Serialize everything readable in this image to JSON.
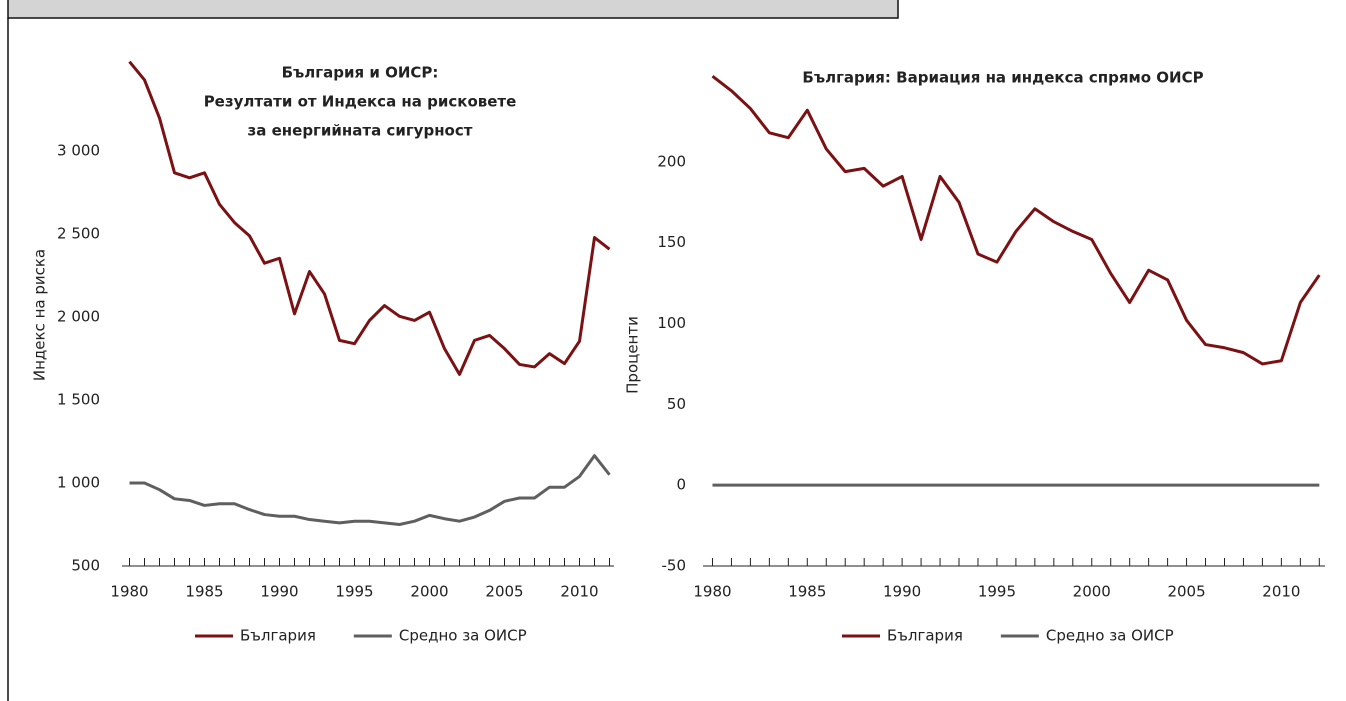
{
  "chart_data": [
    {
      "type": "line",
      "title": [
        "България и ОИСР:",
        "Резултати от Индекса на рисковете",
        "за енергийната сигурност"
      ],
      "y_label": "Индекс на риска",
      "x": [
        1980,
        1981,
        1982,
        1983,
        1984,
        1985,
        1986,
        1987,
        1988,
        1989,
        1990,
        1991,
        1992,
        1993,
        1994,
        1995,
        1996,
        1997,
        1998,
        1999,
        2000,
        2001,
        2002,
        2003,
        2004,
        2005,
        2006,
        2007,
        2008,
        2009,
        2010,
        2011,
        2012
      ],
      "series": [
        {
          "name": "България",
          "color": "#7b1113",
          "values": [
            3540,
            3430,
            3200,
            2870,
            2840,
            2870,
            2680,
            2570,
            2490,
            2325,
            2355,
            2020,
            2275,
            2140,
            1860,
            1840,
            1980,
            2070,
            2005,
            1980,
            2030,
            1810,
            1655,
            1860,
            1890,
            1810,
            1715,
            1700,
            1780,
            1720,
            1855,
            2480,
            2410
          ]
        },
        {
          "name": "Средно за ОИСР",
          "color": "#5f5f5f",
          "values": [
            1000,
            1000,
            960,
            905,
            895,
            865,
            875,
            875,
            840,
            810,
            800,
            800,
            780,
            770,
            760,
            770,
            770,
            760,
            750,
            770,
            805,
            785,
            770,
            795,
            835,
            890,
            910,
            910,
            975,
            975,
            1040,
            1165,
            1050
          ]
        }
      ],
      "xlim": [
        1979.5,
        2012.3
      ],
      "xticks": [
        1980,
        1985,
        1990,
        1995,
        2000,
        2005,
        2010
      ],
      "ylim": [
        500,
        3550
      ],
      "yticks": [
        500,
        {
          "value": 1000,
          "label": "1 000"
        },
        {
          "value": 1500,
          "label": "1 500"
        },
        {
          "value": 2000,
          "label": "2 000"
        },
        {
          "value": 2500,
          "label": "2 500"
        },
        {
          "value": 3000,
          "label": "3 000"
        }
      ],
      "legend": "bottom"
    },
    {
      "type": "line",
      "title": [
        "България: Вариация на индекса спрямо ОИСР"
      ],
      "y_label": "Проценти",
      "x": [
        1980,
        1981,
        1982,
        1983,
        1984,
        1985,
        1986,
        1987,
        1988,
        1989,
        1990,
        1991,
        1992,
        1993,
        1994,
        1995,
        1996,
        1997,
        1998,
        1999,
        2000,
        2001,
        2002,
        2003,
        2004,
        2005,
        2006,
        2007,
        2008,
        2009,
        2010,
        2011,
        2012
      ],
      "series": [
        {
          "name": "България",
          "color": "#7b1113",
          "values": [
            253,
            244,
            233,
            218,
            215,
            232,
            208,
            194,
            196,
            185,
            191,
            152,
            191,
            175,
            143,
            138,
            157,
            171,
            163,
            157,
            152,
            131,
            113,
            133,
            127,
            102,
            87,
            85,
            82,
            75,
            77,
            113,
            130
          ]
        },
        {
          "name": "Средно за ОИСР",
          "color": "#5f5f5f",
          "values": [
            0,
            0,
            0,
            0,
            0,
            0,
            0,
            0,
            0,
            0,
            0,
            0,
            0,
            0,
            0,
            0,
            0,
            0,
            0,
            0,
            0,
            0,
            0,
            0,
            0,
            0,
            0,
            0,
            0,
            0,
            0,
            0,
            0
          ]
        }
      ],
      "xlim": [
        1979.5,
        2012.3
      ],
      "xticks": [
        1980,
        1985,
        1990,
        1995,
        2000,
        2005,
        2010
      ],
      "ylim": [
        -50,
        255
      ],
      "yticks": [
        -50,
        0,
        50,
        100,
        150,
        200
      ],
      "legend": "bottom"
    }
  ]
}
